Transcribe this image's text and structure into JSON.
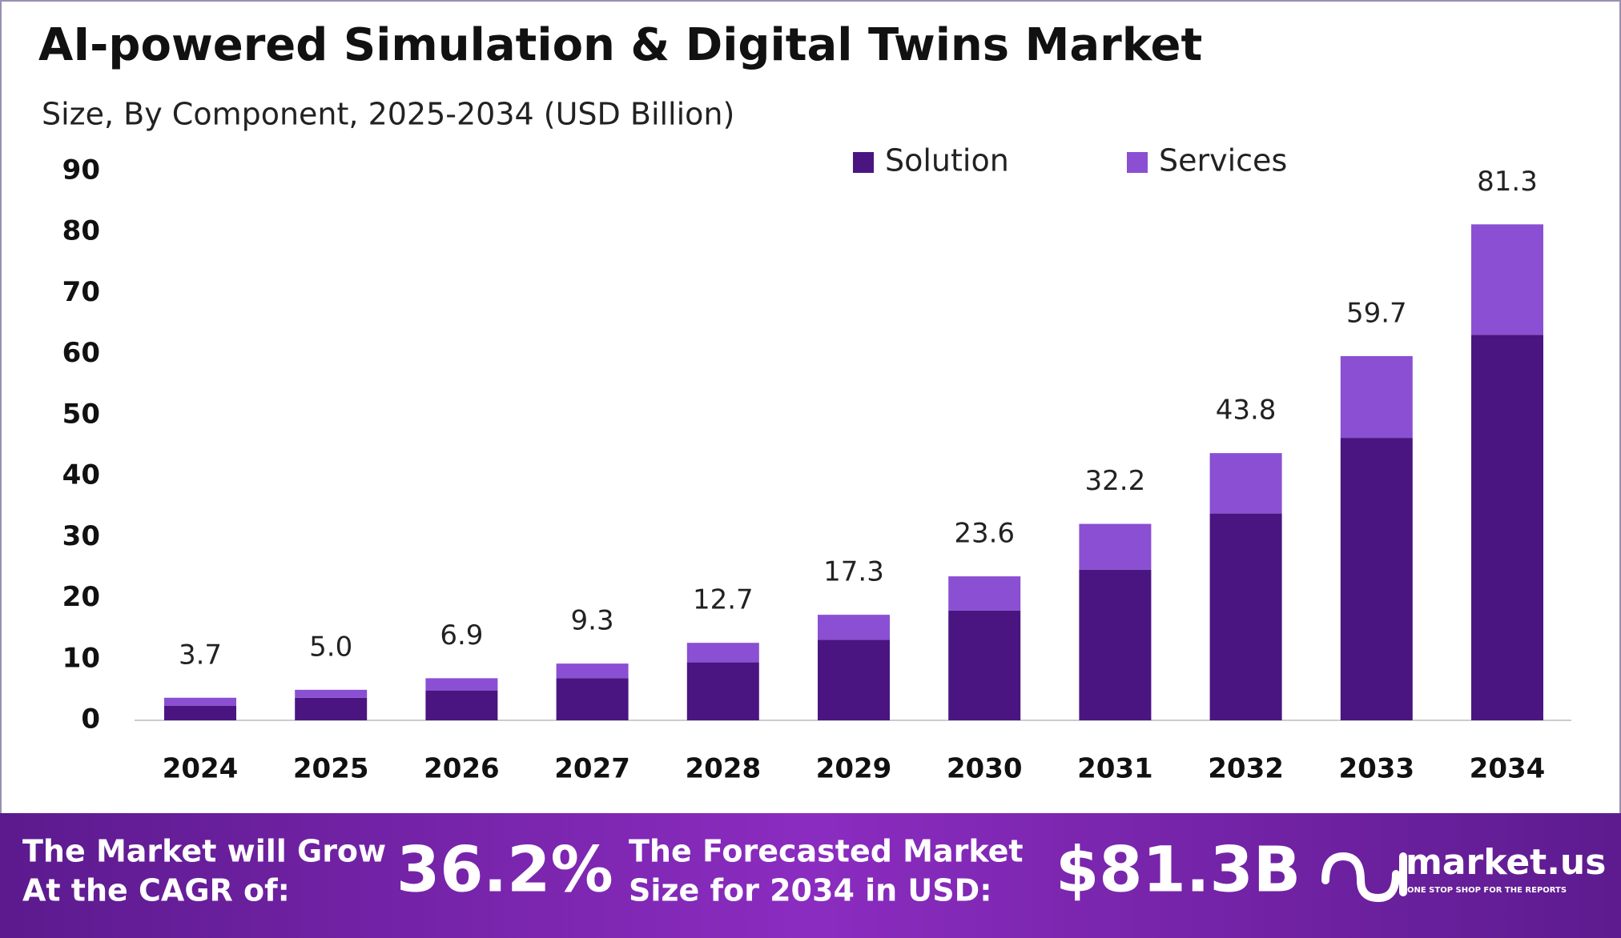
{
  "chart_data": {
    "type": "stacked-bar",
    "title": "AI-powered Simulation & Digital Twins Market",
    "subtitle": "Size, By Component, 2025-2034 (USD Billion)",
    "categories": [
      "2024",
      "2025",
      "2026",
      "2027",
      "2028",
      "2029",
      "2030",
      "2031",
      "2032",
      "2033",
      "2034"
    ],
    "series": [
      {
        "name": "Solution",
        "color": "#4a1580",
        "values": [
          2.4,
          3.7,
          4.9,
          6.9,
          9.5,
          13.2,
          18.0,
          24.7,
          33.9,
          46.3,
          63.2
        ]
      },
      {
        "name": "Services",
        "color": "#8a4fd2",
        "values": [
          1.3,
          1.3,
          2.0,
          2.4,
          3.2,
          4.1,
          5.6,
          7.5,
          9.9,
          13.4,
          18.1
        ]
      }
    ],
    "totals": [
      3.7,
      5.0,
      6.9,
      9.3,
      12.7,
      17.3,
      23.6,
      32.2,
      43.8,
      59.7,
      81.3
    ],
    "total_labels": [
      "3.7",
      "5.0",
      "6.9",
      "9.3",
      "12.7",
      "17.3",
      "23.6",
      "32.2",
      "43.8",
      "59.7",
      "81.3"
    ],
    "ylim": [
      0,
      90
    ],
    "yticks": [
      0,
      10,
      20,
      30,
      40,
      50,
      60,
      70,
      80,
      90
    ],
    "grid": false
  },
  "footer": {
    "cagr_text": [
      "The Market will Grow",
      "At the CAGR of:"
    ],
    "cagr_value": "36.2%",
    "forecast_text": [
      "The Forecasted Market",
      "Size for 2034 in USD:"
    ],
    "forecast_value": "$81.3B",
    "brand": "market.us",
    "tagline": "ONE STOP SHOP FOR THE REPORTS"
  }
}
